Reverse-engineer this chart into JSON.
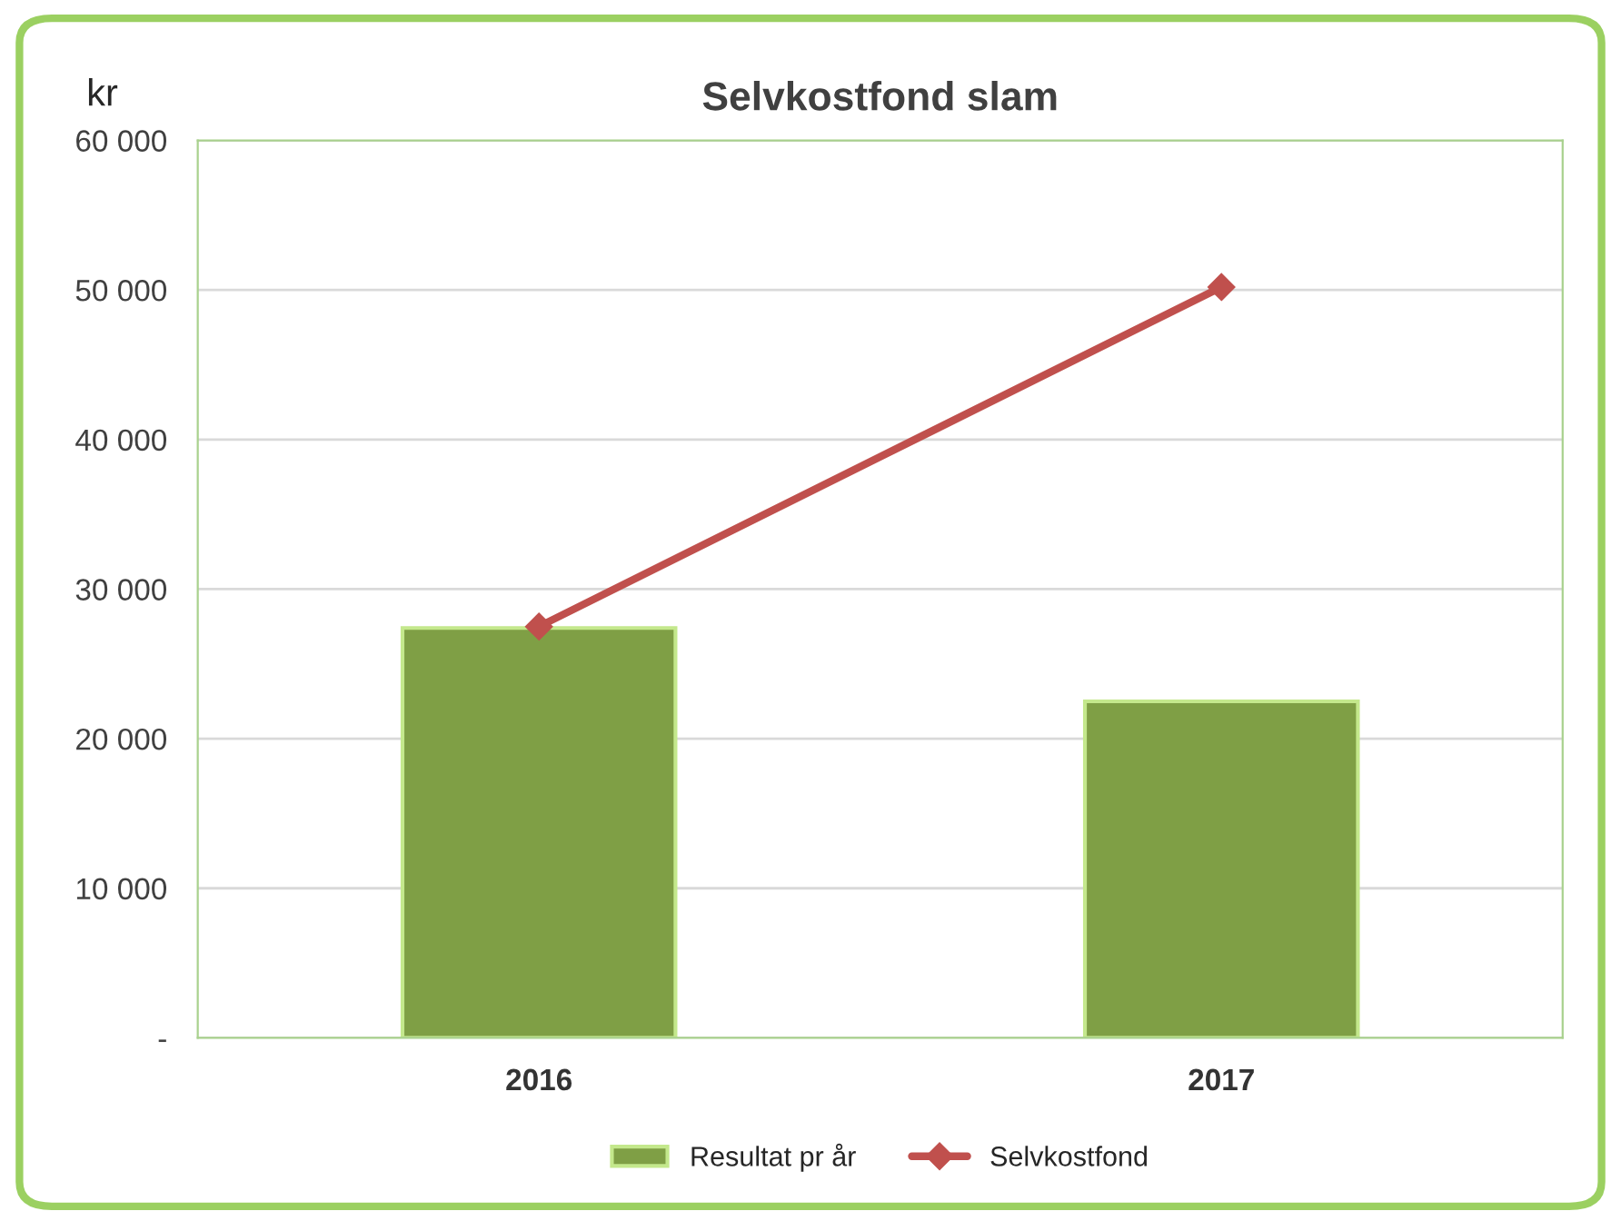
{
  "chart_data": {
    "type": "bar",
    "title": "Selvkostfond slam",
    "ylabel": "kr",
    "categories": [
      "2016",
      "2017"
    ],
    "series": [
      {
        "name": "Resultat pr år",
        "color": "#7f9f45",
        "values": [
          27400,
          22500
        ]
      },
      {
        "name": "Selvkostfond",
        "type": "line",
        "color": "#c0504d",
        "values": [
          27500,
          50200
        ],
        "marker": "diamond",
        "line_style": "solid"
      }
    ],
    "ylim": [
      0,
      60000
    ],
    "yticks": [
      {
        "value": 0,
        "label": "-"
      },
      {
        "value": 10000,
        "label": "10 000"
      },
      {
        "value": 20000,
        "label": "20 000"
      },
      {
        "value": 30000,
        "label": "30 000"
      },
      {
        "value": 40000,
        "label": "40 000"
      },
      {
        "value": 50000,
        "label": "50 000"
      },
      {
        "value": 60000,
        "label": "60 000"
      }
    ],
    "grid": "y",
    "legend": "bottom"
  }
}
